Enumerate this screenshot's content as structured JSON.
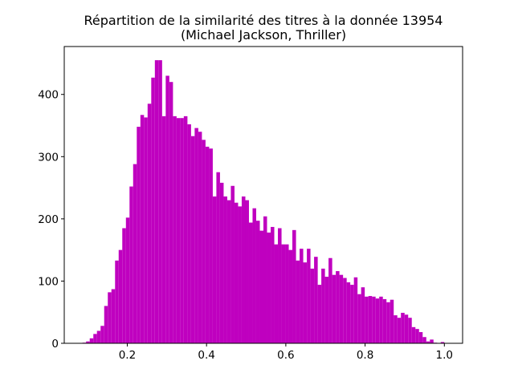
{
  "chart_data": {
    "type": "histogram",
    "title": "Répartition de la similarité des titres à la donnée 13954",
    "subtitle": "(Michael Jackson, Thriller)",
    "color": "#bf00bf",
    "bins": [
      0.087,
      0.0961,
      0.1053,
      0.1144,
      0.1235,
      0.1327,
      0.1418,
      0.1509,
      0.16,
      0.1692,
      0.1783,
      0.1874,
      0.1966,
      0.2057,
      0.2148,
      0.224,
      0.2331,
      0.2422,
      0.2513,
      0.2605,
      0.2696,
      0.2787,
      0.2879,
      0.297,
      0.3061,
      0.3153,
      0.3244,
      0.3335,
      0.3426,
      0.3518,
      0.3609,
      0.37,
      0.3792,
      0.3883,
      0.3974,
      0.4066,
      0.4157,
      0.4248,
      0.4339,
      0.4431,
      0.4522,
      0.4613,
      0.4705,
      0.4796,
      0.4887,
      0.4979,
      0.507,
      0.5161,
      0.5252,
      0.5344,
      0.5435,
      0.5526,
      0.5618,
      0.5709,
      0.58,
      0.5892,
      0.5983,
      0.6074,
      0.6165,
      0.6257,
      0.6348,
      0.6439,
      0.6531,
      0.6622,
      0.6713,
      0.6805,
      0.6896,
      0.6987,
      0.7078,
      0.717,
      0.7261,
      0.7352,
      0.7444,
      0.7535,
      0.7626,
      0.7718,
      0.7809,
      0.79,
      0.7991,
      0.8083,
      0.8174,
      0.8265,
      0.8357,
      0.8448,
      0.8539,
      0.8631,
      0.8722,
      0.8813,
      0.8904,
      0.8996,
      0.9087,
      0.9178,
      0.927,
      0.9361,
      0.9452,
      0.9544,
      0.9635,
      0.9726,
      0.9817,
      0.9909,
      1.0
    ],
    "values": [
      1,
      3,
      8,
      15,
      20,
      28,
      60,
      82,
      87,
      133,
      150,
      185,
      202,
      252,
      288,
      348,
      367,
      363,
      385,
      427,
      455,
      455,
      365,
      430,
      420,
      365,
      362,
      362,
      365,
      352,
      333,
      346,
      340,
      327,
      316,
      313,
      236,
      275,
      258,
      236,
      230,
      253,
      226,
      220,
      236,
      230,
      194,
      217,
      197,
      181,
      204,
      178,
      187,
      159,
      185,
      159,
      159,
      150,
      182,
      133,
      152,
      130,
      152,
      120,
      139,
      94,
      120,
      107,
      137,
      110,
      116,
      110,
      105,
      98,
      94,
      106,
      79,
      90,
      75,
      76,
      75,
      72,
      75,
      71,
      66,
      70,
      45,
      41,
      49,
      46,
      41,
      26,
      23,
      18,
      10,
      3,
      6,
      1,
      0,
      2
    ],
    "xlim": [
      0.041,
      1.046
    ],
    "ylim": [
      0,
      477
    ],
    "xticks": [
      0.2,
      0.4,
      0.6,
      0.8,
      {
        "value": 1,
        "label": "1.0"
      }
    ],
    "yticks": [
      0,
      100,
      200,
      300,
      400
    ]
  }
}
